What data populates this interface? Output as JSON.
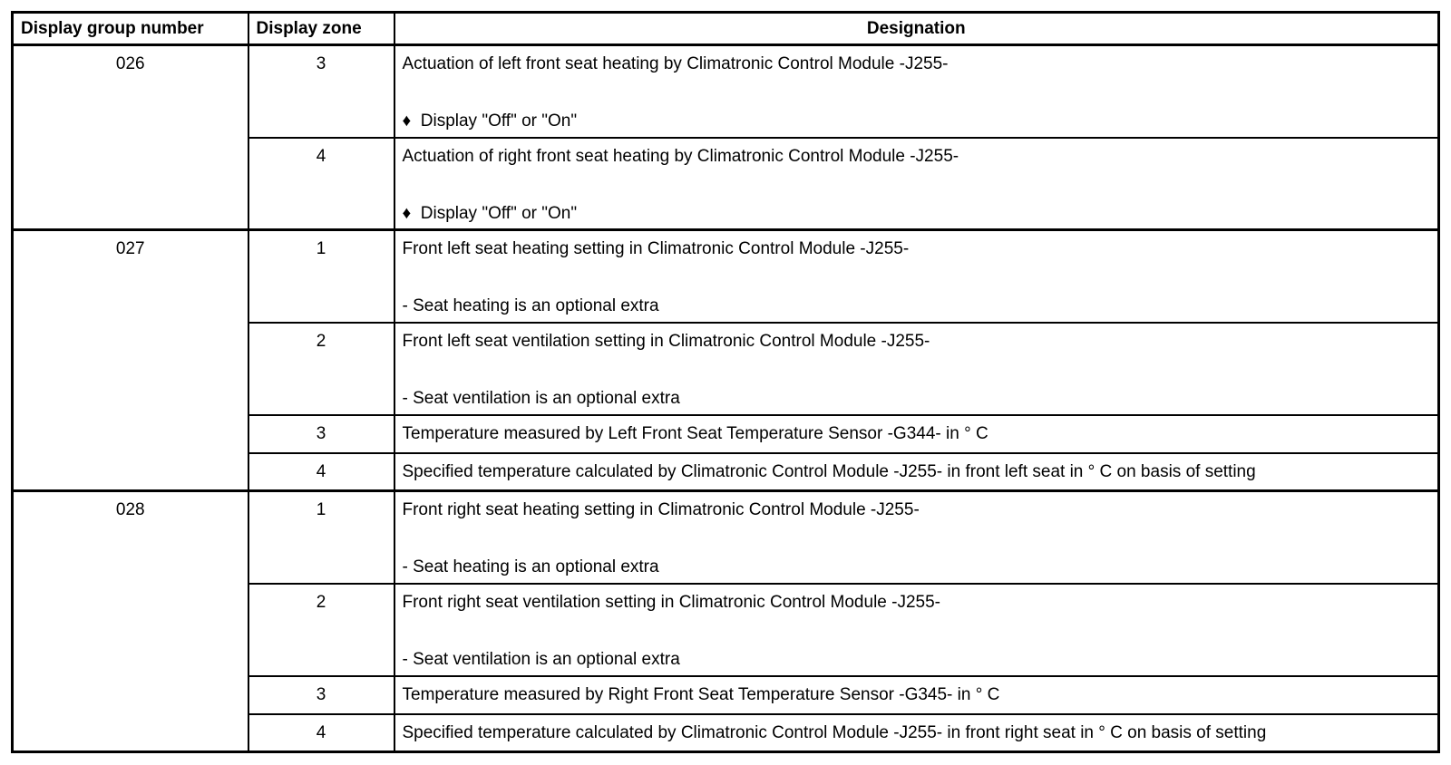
{
  "colors": {
    "border": "#000000",
    "background": "#ffffff",
    "text": "#000000"
  },
  "table": {
    "headers": [
      "Display group number",
      "Display zone",
      "Designation"
    ],
    "groups": [
      {
        "number": "026",
        "zones": [
          {
            "zone": "3",
            "main": "Actuation of left front seat heating by Climatronic Control Module -J255-",
            "sub": "♦  Display \"Off\" or \"On\""
          },
          {
            "zone": "4",
            "main": "Actuation of right front seat heating by Climatronic Control Module -J255-",
            "sub": "♦  Display \"Off\" or \"On\""
          }
        ]
      },
      {
        "number": "027",
        "zones": [
          {
            "zone": "1",
            "main": "Front left seat heating setting in Climatronic Control Module -J255-",
            "sub": "- Seat heating is an optional extra"
          },
          {
            "zone": "2",
            "main": "Front left seat ventilation setting in Climatronic Control Module -J255-",
            "sub": "- Seat ventilation is an optional extra"
          },
          {
            "zone": "3",
            "main": "Temperature measured by Left Front Seat Temperature Sensor -G344- in ° C"
          },
          {
            "zone": "4",
            "main": "Specified temperature calculated by Climatronic Control Module -J255- in front left seat in ° C on basis of setting"
          }
        ]
      },
      {
        "number": "028",
        "zones": [
          {
            "zone": "1",
            "main": "Front right seat heating setting in Climatronic Control Module -J255-",
            "sub": "- Seat heating is an optional extra"
          },
          {
            "zone": "2",
            "main": "Front right seat ventilation setting in Climatronic Control Module -J255-",
            "sub": "- Seat ventilation is an optional extra"
          },
          {
            "zone": "3",
            "main": "Temperature measured by Right Front Seat Temperature Sensor -G345- in ° C"
          },
          {
            "zone": "4",
            "main": "Specified temperature calculated by Climatronic Control Module -J255- in front right seat in ° C on basis of setting"
          }
        ]
      }
    ]
  }
}
